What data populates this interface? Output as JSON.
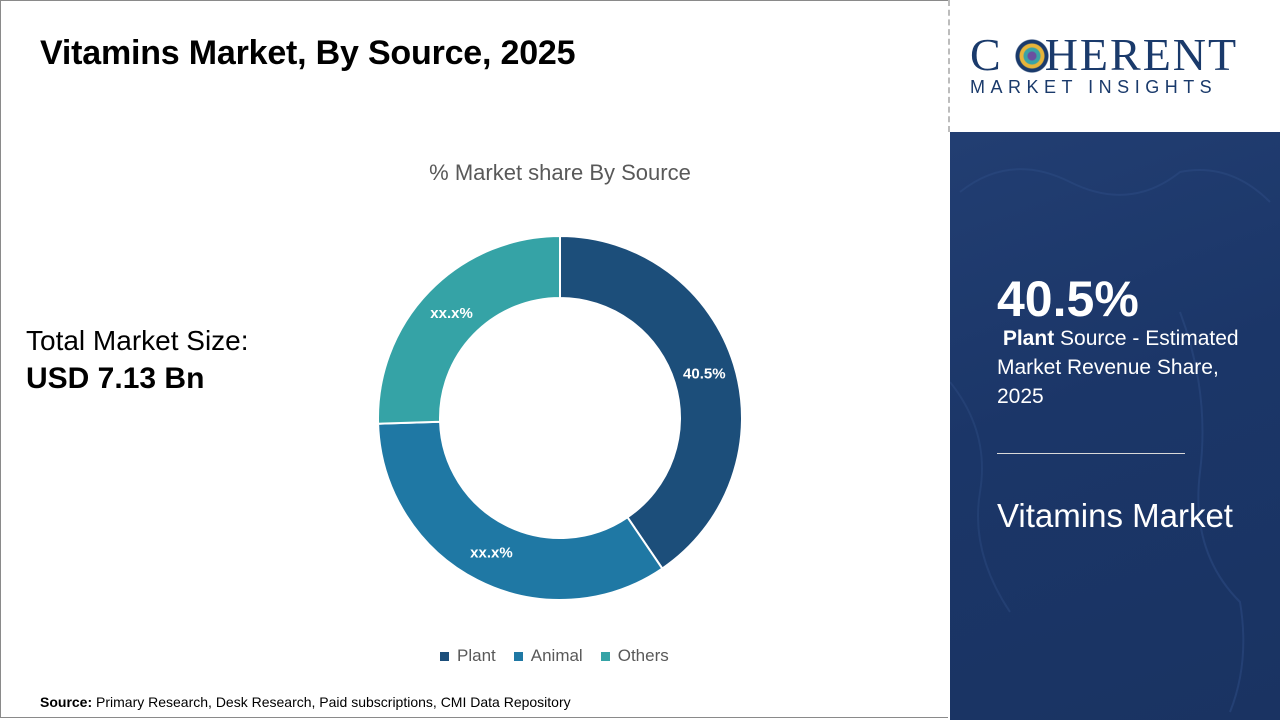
{
  "page": {
    "title": "Vitamins Market, By Source, 2025",
    "total_label": "Total Market Size:",
    "total_value": "USD 7.13 Bn",
    "source_label": "Source:",
    "source_text": "Primary Research, Desk Research, Paid subscriptions, CMI Data Repository"
  },
  "logo": {
    "main_before": "C",
    "main_after": "HERENT",
    "sub": "MARKET INSIGHTS"
  },
  "panel": {
    "stat_value": "40.5%",
    "stat_bold": "Plant",
    "stat_rest": " Source - Estimated Market Revenue Share, 2025",
    "market_name": "Vitamins Market"
  },
  "chart_data": {
    "type": "pie",
    "title": "% Market share By Source",
    "donut": true,
    "categories": [
      "Plant",
      "Animal",
      "Others"
    ],
    "values": [
      40.5,
      34.0,
      25.5
    ],
    "data_labels": [
      "40.5%",
      "xx.x%",
      "xx.x%"
    ],
    "colors": [
      "#1c4e7a",
      "#1f78a4",
      "#35a3a6"
    ],
    "legend_position": "bottom"
  }
}
